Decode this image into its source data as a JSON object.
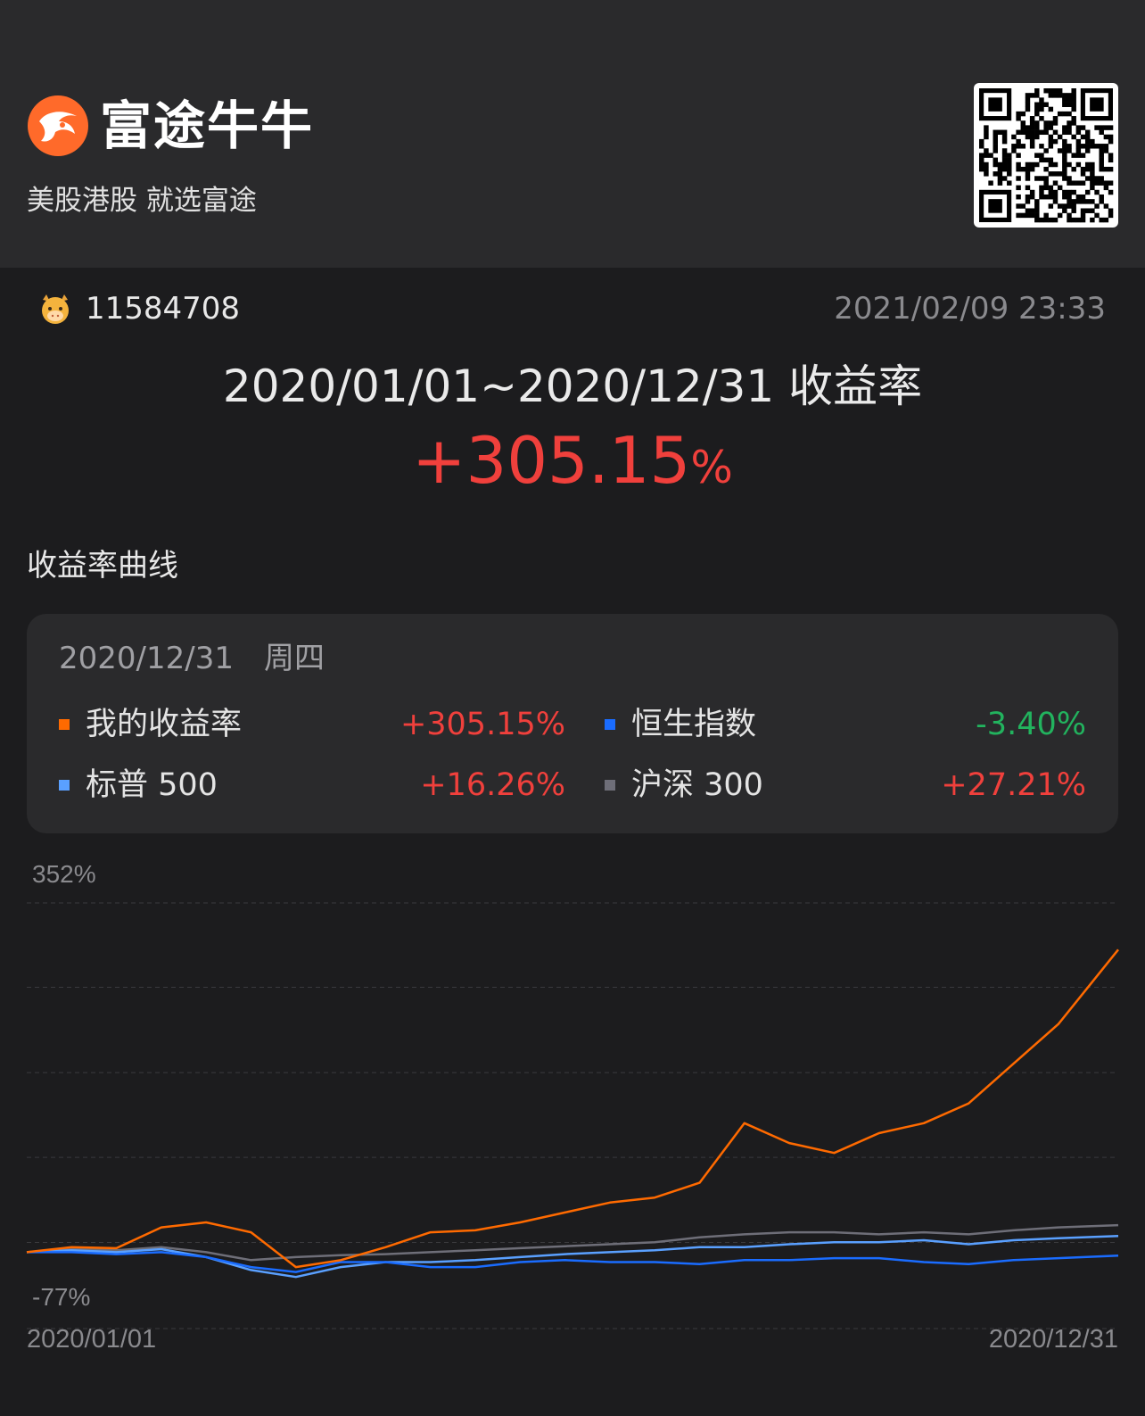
{
  "brand": {
    "name": "富途牛牛",
    "slogan": "美股港股 就选富途"
  },
  "user": {
    "id": "11584708"
  },
  "timestamp": "2021/02/09 23:33",
  "summary": {
    "period_label": "2020/01/01~2020/12/31 收益率",
    "return_value": "+305.15",
    "return_unit": "%"
  },
  "section_title": "收益率曲线",
  "card": {
    "date": "2020/12/31　周四",
    "legend": [
      {
        "name": "我的收益率",
        "value": "+305.15%",
        "color": "#ff6a00",
        "value_color": "#f0403c"
      },
      {
        "name": "恒生指数",
        "value": "-3.40%",
        "color": "#1a6cff",
        "value_color": "#22b35e"
      },
      {
        "name": "标普 500",
        "value": "+16.26%",
        "color": "#5aa0ff",
        "value_color": "#f0403c"
      },
      {
        "name": "沪深 300",
        "value": "+27.21%",
        "color": "#6e6e78",
        "value_color": "#f0403c"
      }
    ]
  },
  "chart_data": {
    "type": "line",
    "y_top_label": "352%",
    "y_bottom_label": "-77%",
    "x_start_label": "2020/01/01",
    "x_end_label": "2020/12/31",
    "ylim": [
      -77,
      352
    ],
    "y_gridlines": [
      352,
      267,
      181,
      95.6,
      9.8,
      -77
    ],
    "x": [
      0,
      15,
      30,
      45,
      60,
      75,
      90,
      105,
      120,
      135,
      150,
      165,
      180,
      195,
      210,
      225,
      240,
      255,
      270,
      285,
      300,
      315,
      330,
      345,
      365
    ],
    "series": [
      {
        "name": "我的收益率",
        "color": "#ff6a00",
        "values": [
          0,
          5,
          4,
          25,
          30,
          20,
          -15,
          -8,
          5,
          20,
          22,
          30,
          40,
          50,
          55,
          70,
          130,
          110,
          100,
          120,
          130,
          150,
          190,
          230,
          305
        ]
      },
      {
        "name": "恒生指数",
        "color": "#1a6cff",
        "values": [
          0,
          0,
          -2,
          0,
          -5,
          -15,
          -20,
          -10,
          -10,
          -15,
          -15,
          -10,
          -8,
          -10,
          -10,
          -12,
          -8,
          -8,
          -6,
          -6,
          -10,
          -12,
          -8,
          -6,
          -3.4
        ]
      },
      {
        "name": "标普 500",
        "color": "#5aa0ff",
        "values": [
          0,
          2,
          0,
          3,
          -5,
          -18,
          -25,
          -15,
          -10,
          -10,
          -8,
          -5,
          -2,
          0,
          2,
          5,
          5,
          8,
          10,
          10,
          12,
          8,
          12,
          14,
          16.3
        ]
      },
      {
        "name": "沪深 300",
        "color": "#6e6e78",
        "values": [
          0,
          3,
          2,
          5,
          0,
          -8,
          -5,
          -3,
          -2,
          0,
          2,
          4,
          6,
          8,
          10,
          15,
          18,
          20,
          20,
          18,
          20,
          18,
          22,
          25,
          27.2
        ]
      }
    ]
  }
}
